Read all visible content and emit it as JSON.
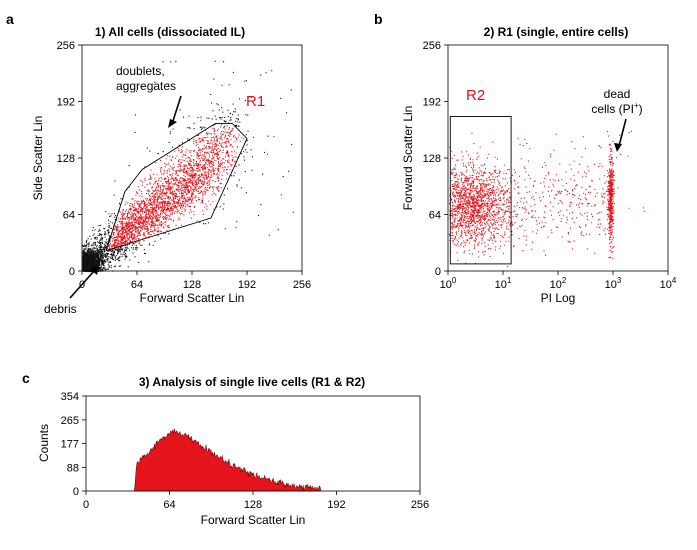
{
  "colors": {
    "gated": "#e3141b",
    "ungated": "#111111",
    "axis": "#000000",
    "hist_fill": "#e3141b",
    "gate_label": "#e0101a"
  },
  "chart_data": [
    {
      "id": "a",
      "panel_label": "a",
      "type": "scatter",
      "title": "1) All cells (dissociated IL)",
      "xlabel": "Forward Scatter Lin",
      "ylabel": "Side Scatter Lin",
      "xlim": [
        0,
        256
      ],
      "ylim": [
        0,
        256
      ],
      "xticks": [
        0,
        64,
        128,
        192,
        256
      ],
      "yticks": [
        0,
        64,
        128,
        192,
        256
      ],
      "grid": false,
      "series": [
        {
          "color": "ungated",
          "cloud": {
            "core_center": [
              10,
              14
            ],
            "description_points": 3000
          }
        },
        {
          "color": "gated"
        }
      ],
      "gate": {
        "label": "R1",
        "polygon": [
          [
            28,
            23
          ],
          [
            150,
            60
          ],
          [
            192,
            150
          ],
          [
            175,
            167
          ],
          [
            155,
            167
          ],
          [
            70,
            115
          ],
          [
            50,
            90
          ]
        ]
      },
      "annotations": [
        {
          "text_lines": [
            "doublets,",
            "aggregates"
          ],
          "arrow_to": [
            100,
            165
          ]
        },
        {
          "text_lines": [
            "debris"
          ],
          "arrow_to": [
            6,
            8
          ]
        }
      ]
    },
    {
      "id": "b",
      "panel_label": "b",
      "type": "scatter",
      "title": "2) R1 (single, entire cells)",
      "xlabel": "PI Log",
      "ylabel": "Forward Scatter Lin",
      "xscale": "log",
      "xlim": [
        1,
        10000
      ],
      "ylim": [
        0,
        256
      ],
      "xticks": [
        1,
        10,
        100,
        1000,
        10000
      ],
      "xtick_labels": [
        {
          "base": "10",
          "exp": "0"
        },
        {
          "base": "10",
          "exp": "1"
        },
        {
          "base": "10",
          "exp": "2"
        },
        {
          "base": "10",
          "exp": "3"
        },
        {
          "base": "10",
          "exp": "4"
        }
      ],
      "yticks": [
        0,
        64,
        128,
        192,
        256
      ],
      "grid": false,
      "series": [
        {
          "color": "gated"
        }
      ],
      "gate": {
        "label": "R2",
        "rect_x": [
          1.1,
          14
        ],
        "rect_y": [
          8,
          175
        ]
      },
      "annotations": [
        {
          "text_lines": [
            "dead",
            "cells (PI"
          ],
          "superscript": "+",
          "close": ")",
          "arrow_to": [
            900,
            135
          ]
        }
      ]
    },
    {
      "id": "c",
      "panel_label": "c",
      "type": "bar",
      "subtype": "histogram",
      "title": "3) Analysis of single live cells (R1 & R2)",
      "xlabel": "Forward Scatter Lin",
      "ylabel": "Counts",
      "xlim": [
        0,
        256
      ],
      "ylim": [
        0,
        354
      ],
      "xticks": [
        0,
        64,
        128,
        192,
        256
      ],
      "yticks": [
        0,
        88,
        177,
        265,
        354
      ],
      "grid": false,
      "x_start": 37,
      "x_end": 180,
      "peak_x": 66,
      "peak_count": 225
    }
  ]
}
